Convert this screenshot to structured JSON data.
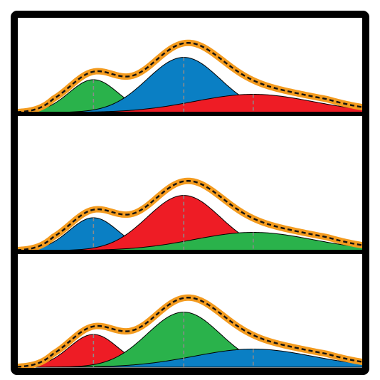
{
  "figure": {
    "description_visible_text": ""
  },
  "colors": {
    "frame": "#000000",
    "background": "#ffffff",
    "envelope": "#f39b1f",
    "dashed_fit": "#111111",
    "peak_marker": "#8a8a8a",
    "red": "#ee1c25",
    "green": "#2ab24b",
    "blue": "#0a7fc4"
  },
  "chart_data": {
    "type": "area",
    "x_range": [
      0,
      100
    ],
    "panels": [
      {
        "components": [
          {
            "color": "green",
            "mean": 22,
            "sd": 7.0,
            "amp": 0.47
          },
          {
            "color": "blue",
            "mean": 48,
            "sd": 10.5,
            "amp": 0.79
          },
          {
            "color": "red",
            "mean": 68,
            "sd": 17.0,
            "amp": 0.26
          }
        ]
      },
      {
        "components": [
          {
            "color": "blue",
            "mean": 22,
            "sd": 7.0,
            "amp": 0.47
          },
          {
            "color": "red",
            "mean": 48,
            "sd": 10.5,
            "amp": 0.79
          },
          {
            "color": "green",
            "mean": 68,
            "sd": 17.0,
            "amp": 0.26
          }
        ]
      },
      {
        "components": [
          {
            "color": "red",
            "mean": 22,
            "sd": 7.0,
            "amp": 0.47
          },
          {
            "color": "green",
            "mean": 48,
            "sd": 10.5,
            "amp": 0.79
          },
          {
            "color": "blue",
            "mean": 68,
            "sd": 17.0,
            "amp": 0.26
          }
        ]
      }
    ]
  }
}
